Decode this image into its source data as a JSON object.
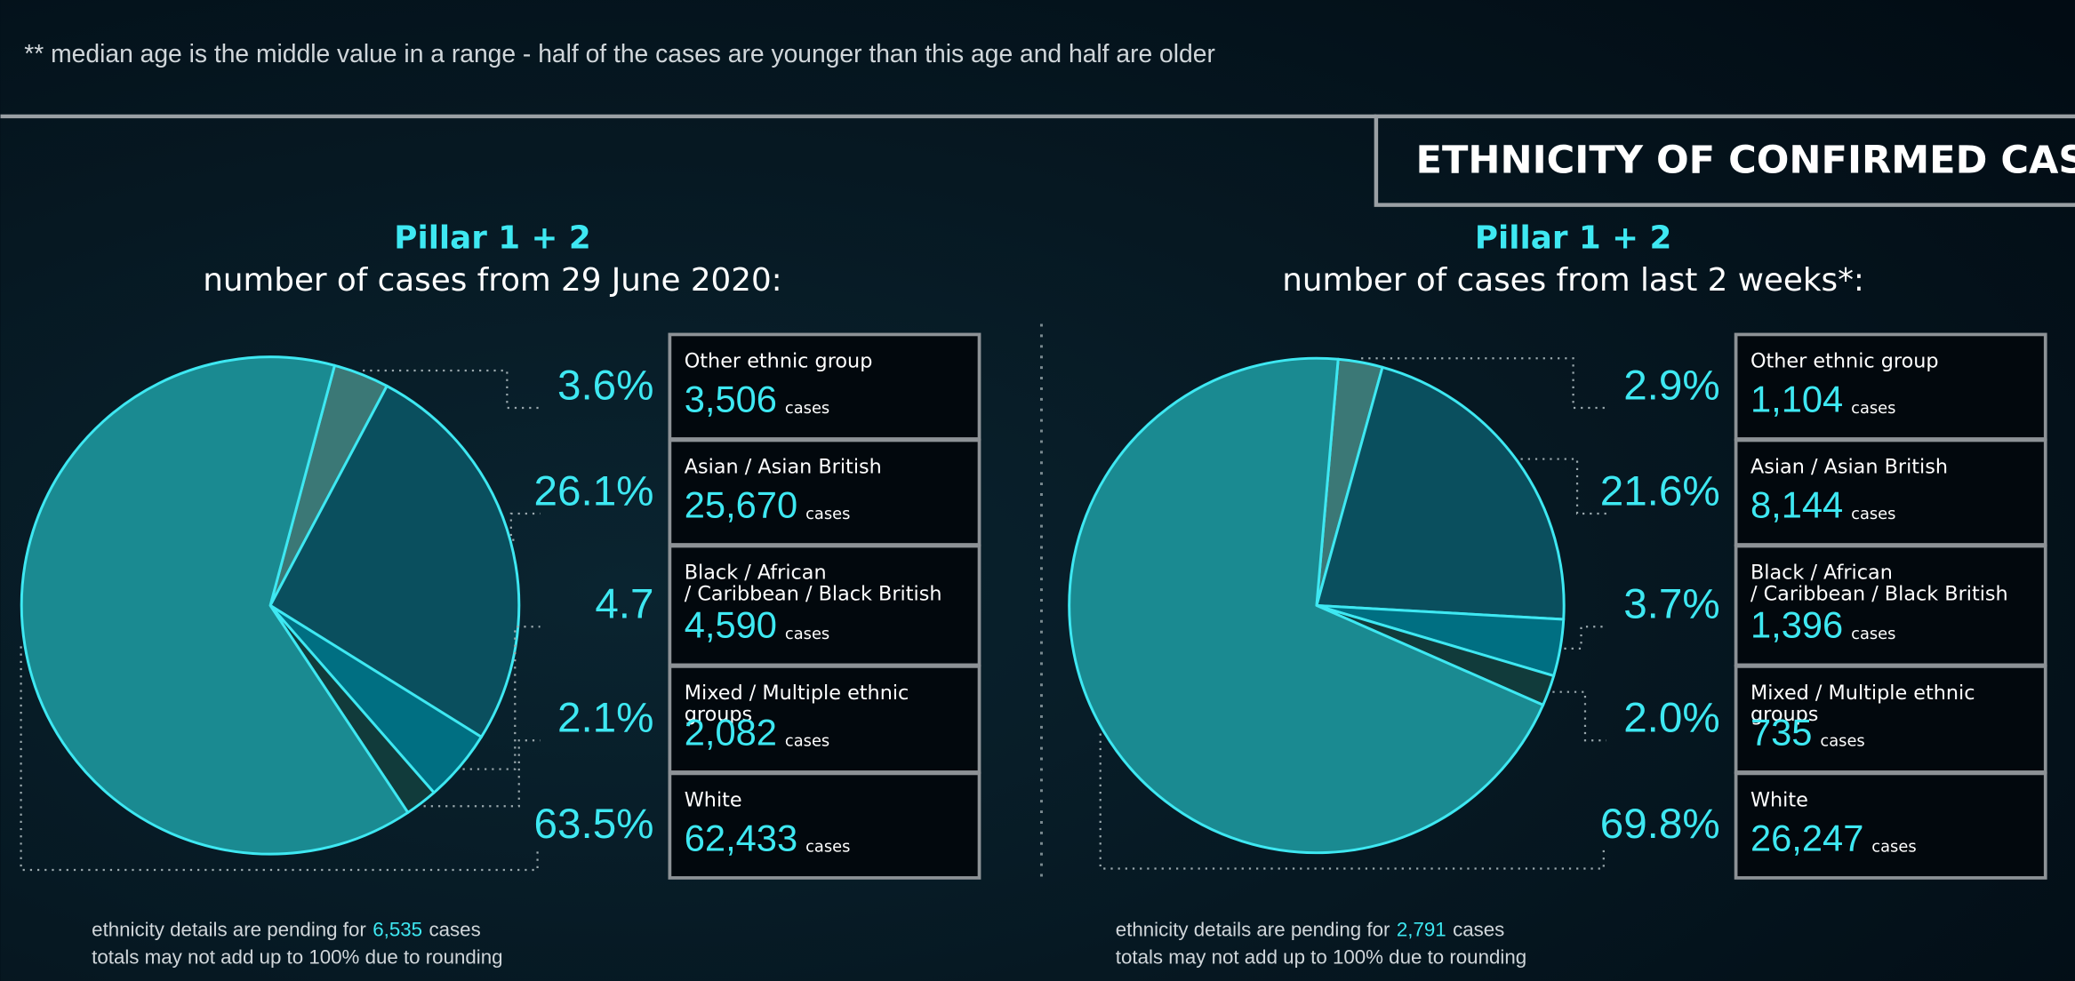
{
  "note": "** median age is the middle value in a range - half of the cases are younger than this age and half are older",
  "section_title": "ETHNICITY OF CONFIRMED CASES",
  "chart_data": [
    {
      "type": "pie",
      "title": "Pillar 1 + 2",
      "subtitle": "number of cases from 29 June 2020:",
      "categories": [
        "Other ethnic group",
        "Asian / Asian British",
        "Black / African\n/ Caribbean / Black British",
        "Mixed / Multiple ethnic groups",
        "White"
      ],
      "values": [
        3.6,
        26.1,
        4.7,
        2.1,
        63.5
      ],
      "value_labels": [
        "3.6%",
        "26.1%",
        "4.7",
        "2.1%",
        "63.5%"
      ],
      "counts": [
        3506,
        25670,
        4590,
        2082,
        62433
      ],
      "count_labels": [
        "3,506",
        "25,670",
        "4,590",
        "2,082",
        "62,433"
      ],
      "count_unit": "cases",
      "colors": [
        "#3b7876",
        "#0a4f5e",
        "#006f82",
        "#113b3b",
        "#1a8a91"
      ],
      "pending_text": "ethnicity details are pending for",
      "pending": 6535,
      "pending_label": "6,535",
      "pending_unit": "cases",
      "footnote": "totals may not add up to 100% due to rounding"
    },
    {
      "type": "pie",
      "title": "Pillar 1 + 2",
      "subtitle": "number of cases from last 2 weeks*:",
      "categories": [
        "Other ethnic group",
        "Asian / Asian British",
        "Black / African\n/ Caribbean / Black British",
        "Mixed / Multiple ethnic groups",
        "White"
      ],
      "values": [
        2.9,
        21.6,
        3.7,
        2.0,
        69.8
      ],
      "value_labels": [
        "2.9%",
        "21.6%",
        "3.7%",
        "2.0%",
        "69.8%"
      ],
      "counts": [
        1104,
        8144,
        1396,
        735,
        26247
      ],
      "count_labels": [
        "1,104",
        "8,144",
        "1,396",
        735,
        "26,247"
      ],
      "count_unit": "cases",
      "colors": [
        "#3b7876",
        "#0a4f5e",
        "#006f82",
        "#113b3b",
        "#1a8a91"
      ],
      "pending_text": "ethnicity details are pending for",
      "pending": 2791,
      "pending_label": "2,791",
      "pending_unit": "cases",
      "footnote": "totals may not add up to 100% due to rounding"
    }
  ]
}
